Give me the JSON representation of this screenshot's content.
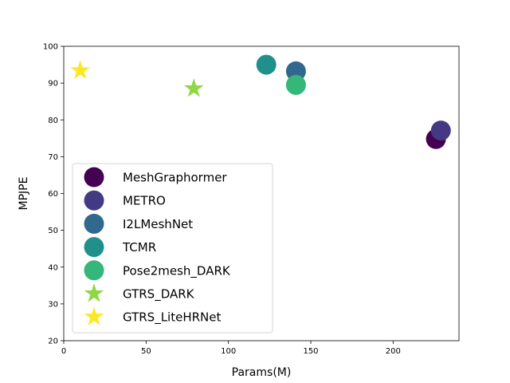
{
  "chart_data": {
    "type": "scatter",
    "title": "",
    "xlabel": "Params(M)",
    "ylabel": "MPJPE",
    "xlim": [
      0,
      240
    ],
    "ylim": [
      20,
      100
    ],
    "xticks": [
      0,
      50,
      100,
      150,
      200
    ],
    "yticks": [
      20,
      30,
      40,
      50,
      60,
      70,
      80,
      90,
      100
    ],
    "grid": false,
    "legend_position": "lower-left",
    "series": [
      {
        "name": "MeshGraphormer",
        "marker": "circle",
        "color": "#440154",
        "points": [
          {
            "x": 226,
            "y": 74.8
          }
        ]
      },
      {
        "name": "METRO",
        "marker": "circle",
        "color": "#443a83",
        "points": [
          {
            "x": 229,
            "y": 77.1
          }
        ]
      },
      {
        "name": "I2LMeshNet",
        "marker": "circle",
        "color": "#31688e",
        "points": [
          {
            "x": 141,
            "y": 93.2
          }
        ]
      },
      {
        "name": "TCMR",
        "marker": "circle",
        "color": "#21908d",
        "points": [
          {
            "x": 123,
            "y": 95.0
          }
        ]
      },
      {
        "name": "Pose2mesh_DARK",
        "marker": "circle",
        "color": "#35b779",
        "points": [
          {
            "x": 141,
            "y": 89.5
          }
        ]
      },
      {
        "name": "GTRS_DARK",
        "marker": "star",
        "color": "#8fd744",
        "points": [
          {
            "x": 79,
            "y": 88.5
          }
        ]
      },
      {
        "name": "GTRS_LiteHRNet",
        "marker": "star",
        "color": "#fde725",
        "points": [
          {
            "x": 10,
            "y": 93.4
          }
        ]
      }
    ]
  }
}
